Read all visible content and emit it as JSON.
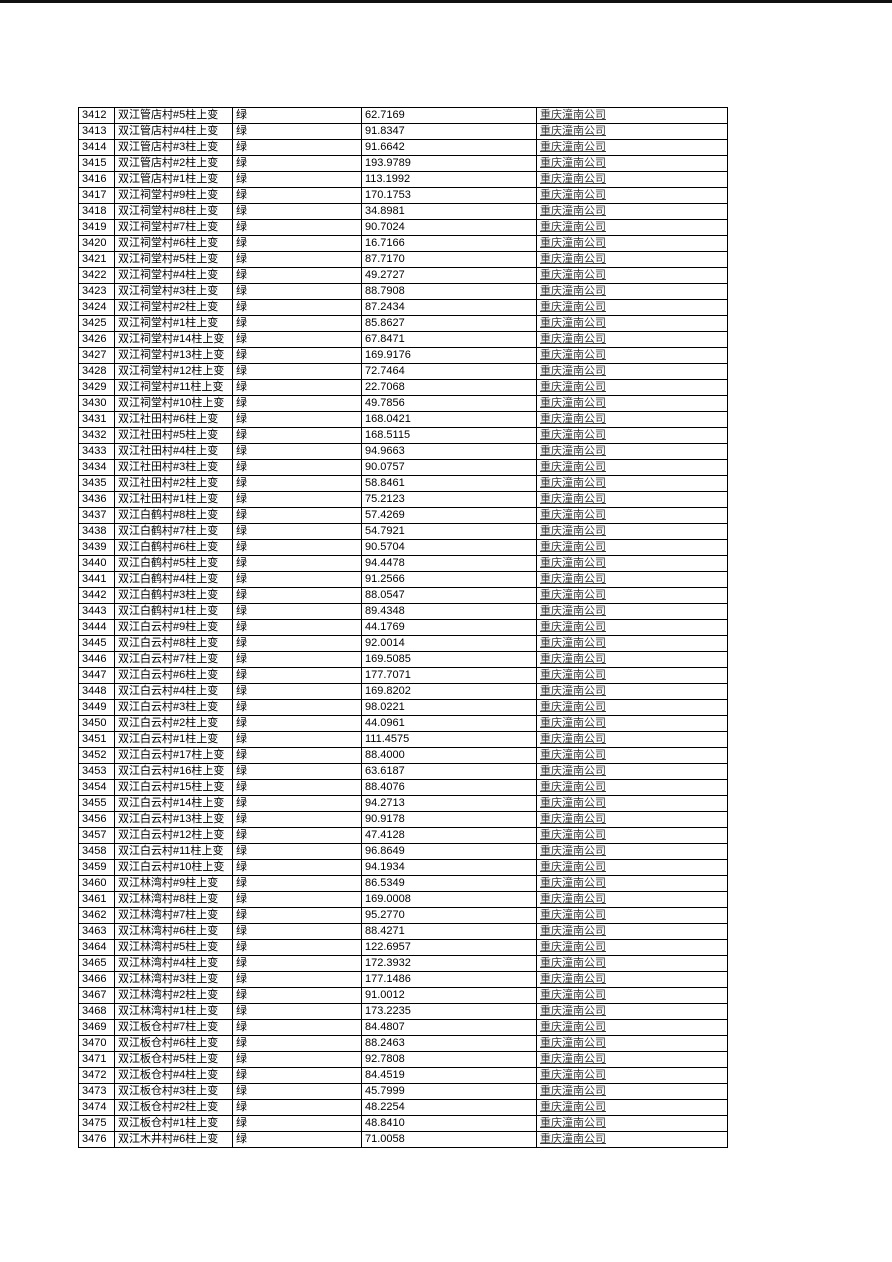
{
  "page": {
    "background": "#ffffff",
    "top_bar_color": "#111111",
    "border_color": "#000000",
    "company_text_color": "#3a3a3a"
  },
  "table": {
    "columns": [
      "id",
      "name",
      "status",
      "value",
      "company"
    ],
    "rows": [
      {
        "id": "3412",
        "name": "双江管店村#5柱上变",
        "status": "绿",
        "value": "62.7169",
        "company": "重庆潼南公司"
      },
      {
        "id": "3413",
        "name": "双江管店村#4柱上变",
        "status": "绿",
        "value": "91.8347",
        "company": "重庆潼南公司"
      },
      {
        "id": "3414",
        "name": "双江管店村#3柱上变",
        "status": "绿",
        "value": "91.6642",
        "company": "重庆潼南公司"
      },
      {
        "id": "3415",
        "name": "双江管店村#2柱上变",
        "status": "绿",
        "value": "193.9789",
        "company": "重庆潼南公司"
      },
      {
        "id": "3416",
        "name": "双江管店村#1柱上变",
        "status": "绿",
        "value": "113.1992",
        "company": "重庆潼南公司"
      },
      {
        "id": "3417",
        "name": "双江祠堂村#9柱上变",
        "status": "绿",
        "value": "170.1753",
        "company": "重庆潼南公司"
      },
      {
        "id": "3418",
        "name": "双江祠堂村#8柱上变",
        "status": "绿",
        "value": "34.8981",
        "company": "重庆潼南公司"
      },
      {
        "id": "3419",
        "name": "双江祠堂村#7柱上变",
        "status": "绿",
        "value": "90.7024",
        "company": "重庆潼南公司"
      },
      {
        "id": "3420",
        "name": "双江祠堂村#6柱上变",
        "status": "绿",
        "value": "16.7166",
        "company": "重庆潼南公司"
      },
      {
        "id": "3421",
        "name": "双江祠堂村#5柱上变",
        "status": "绿",
        "value": "87.7170",
        "company": "重庆潼南公司"
      },
      {
        "id": "3422",
        "name": "双江祠堂村#4柱上变",
        "status": "绿",
        "value": "49.2727",
        "company": "重庆潼南公司"
      },
      {
        "id": "3423",
        "name": "双江祠堂村#3柱上变",
        "status": "绿",
        "value": "88.7908",
        "company": "重庆潼南公司"
      },
      {
        "id": "3424",
        "name": "双江祠堂村#2柱上变",
        "status": "绿",
        "value": "87.2434",
        "company": "重庆潼南公司"
      },
      {
        "id": "3425",
        "name": "双江祠堂村#1柱上变",
        "status": "绿",
        "value": "85.8627",
        "company": "重庆潼南公司"
      },
      {
        "id": "3426",
        "name": "双江祠堂村#14柱上变",
        "status": "绿",
        "value": "67.8471",
        "company": "重庆潼南公司"
      },
      {
        "id": "3427",
        "name": "双江祠堂村#13柱上变",
        "status": "绿",
        "value": "169.9176",
        "company": "重庆潼南公司"
      },
      {
        "id": "3428",
        "name": "双江祠堂村#12柱上变",
        "status": "绿",
        "value": "72.7464",
        "company": "重庆潼南公司"
      },
      {
        "id": "3429",
        "name": "双江祠堂村#11柱上变",
        "status": "绿",
        "value": "22.7068",
        "company": "重庆潼南公司"
      },
      {
        "id": "3430",
        "name": "双江祠堂村#10柱上变",
        "status": "绿",
        "value": "49.7856",
        "company": "重庆潼南公司"
      },
      {
        "id": "3431",
        "name": "双江社田村#6柱上变",
        "status": "绿",
        "value": "168.0421",
        "company": "重庆潼南公司"
      },
      {
        "id": "3432",
        "name": "双江社田村#5柱上变",
        "status": "绿",
        "value": "168.5115",
        "company": "重庆潼南公司"
      },
      {
        "id": "3433",
        "name": "双江社田村#4柱上变",
        "status": "绿",
        "value": "94.9663",
        "company": "重庆潼南公司"
      },
      {
        "id": "3434",
        "name": "双江社田村#3柱上变",
        "status": "绿",
        "value": "90.0757",
        "company": "重庆潼南公司"
      },
      {
        "id": "3435",
        "name": "双江社田村#2柱上变",
        "status": "绿",
        "value": "58.8461",
        "company": "重庆潼南公司"
      },
      {
        "id": "3436",
        "name": "双江社田村#1柱上变",
        "status": "绿",
        "value": "75.2123",
        "company": "重庆潼南公司"
      },
      {
        "id": "3437",
        "name": "双江白鹤村#8柱上变",
        "status": "绿",
        "value": "57.4269",
        "company": "重庆潼南公司"
      },
      {
        "id": "3438",
        "name": "双江白鹤村#7柱上变",
        "status": "绿",
        "value": "54.7921",
        "company": "重庆潼南公司"
      },
      {
        "id": "3439",
        "name": "双江白鹤村#6柱上变",
        "status": "绿",
        "value": "90.5704",
        "company": "重庆潼南公司"
      },
      {
        "id": "3440",
        "name": "双江白鹤村#5柱上变",
        "status": "绿",
        "value": "94.4478",
        "company": "重庆潼南公司"
      },
      {
        "id": "3441",
        "name": "双江白鹤村#4柱上变",
        "status": "绿",
        "value": "91.2566",
        "company": "重庆潼南公司"
      },
      {
        "id": "3442",
        "name": "双江白鹤村#3柱上变",
        "status": "绿",
        "value": "88.0547",
        "company": "重庆潼南公司"
      },
      {
        "id": "3443",
        "name": "双江白鹤村#1柱上变",
        "status": "绿",
        "value": "89.4348",
        "company": "重庆潼南公司"
      },
      {
        "id": "3444",
        "name": "双江白云村#9柱上变",
        "status": "绿",
        "value": "44.1769",
        "company": "重庆潼南公司"
      },
      {
        "id": "3445",
        "name": "双江白云村#8柱上变",
        "status": "绿",
        "value": "92.0014",
        "company": "重庆潼南公司"
      },
      {
        "id": "3446",
        "name": "双江白云村#7柱上变",
        "status": "绿",
        "value": "169.5085",
        "company": "重庆潼南公司"
      },
      {
        "id": "3447",
        "name": "双江白云村#6柱上变",
        "status": "绿",
        "value": "177.7071",
        "company": "重庆潼南公司"
      },
      {
        "id": "3448",
        "name": "双江白云村#4柱上变",
        "status": "绿",
        "value": "169.8202",
        "company": "重庆潼南公司"
      },
      {
        "id": "3449",
        "name": "双江白云村#3柱上变",
        "status": "绿",
        "value": "98.0221",
        "company": "重庆潼南公司"
      },
      {
        "id": "3450",
        "name": "双江白云村#2柱上变",
        "status": "绿",
        "value": "44.0961",
        "company": "重庆潼南公司"
      },
      {
        "id": "3451",
        "name": "双江白云村#1柱上变",
        "status": "绿",
        "value": "111.4575",
        "company": "重庆潼南公司"
      },
      {
        "id": "3452",
        "name": "双江白云村#17柱上变",
        "status": "绿",
        "value": "88.4000",
        "company": "重庆潼南公司"
      },
      {
        "id": "3453",
        "name": "双江白云村#16柱上变",
        "status": "绿",
        "value": "63.6187",
        "company": "重庆潼南公司"
      },
      {
        "id": "3454",
        "name": "双江白云村#15柱上变",
        "status": "绿",
        "value": "88.4076",
        "company": "重庆潼南公司"
      },
      {
        "id": "3455",
        "name": "双江白云村#14柱上变",
        "status": "绿",
        "value": "94.2713",
        "company": "重庆潼南公司"
      },
      {
        "id": "3456",
        "name": "双江白云村#13柱上变",
        "status": "绿",
        "value": "90.9178",
        "company": "重庆潼南公司"
      },
      {
        "id": "3457",
        "name": "双江白云村#12柱上变",
        "status": "绿",
        "value": "47.4128",
        "company": "重庆潼南公司"
      },
      {
        "id": "3458",
        "name": "双江白云村#11柱上变",
        "status": "绿",
        "value": "96.8649",
        "company": "重庆潼南公司"
      },
      {
        "id": "3459",
        "name": "双江白云村#10柱上变",
        "status": "绿",
        "value": "94.1934",
        "company": "重庆潼南公司"
      },
      {
        "id": "3460",
        "name": "双江林湾村#9柱上变",
        "status": "绿",
        "value": "86.5349",
        "company": "重庆潼南公司"
      },
      {
        "id": "3461",
        "name": "双江林湾村#8柱上变",
        "status": "绿",
        "value": "169.0008",
        "company": "重庆潼南公司"
      },
      {
        "id": "3462",
        "name": "双江林湾村#7柱上变",
        "status": "绿",
        "value": "95.2770",
        "company": "重庆潼南公司"
      },
      {
        "id": "3463",
        "name": "双江林湾村#6柱上变",
        "status": "绿",
        "value": "88.4271",
        "company": "重庆潼南公司"
      },
      {
        "id": "3464",
        "name": "双江林湾村#5柱上变",
        "status": "绿",
        "value": "122.6957",
        "company": "重庆潼南公司"
      },
      {
        "id": "3465",
        "name": "双江林湾村#4柱上变",
        "status": "绿",
        "value": "172.3932",
        "company": "重庆潼南公司"
      },
      {
        "id": "3466",
        "name": "双江林湾村#3柱上变",
        "status": "绿",
        "value": "177.1486",
        "company": "重庆潼南公司"
      },
      {
        "id": "3467",
        "name": "双江林湾村#2柱上变",
        "status": "绿",
        "value": "91.0012",
        "company": "重庆潼南公司"
      },
      {
        "id": "3468",
        "name": "双江林湾村#1柱上变",
        "status": "绿",
        "value": "173.2235",
        "company": "重庆潼南公司"
      },
      {
        "id": "3469",
        "name": "双江板仓村#7柱上变",
        "status": "绿",
        "value": "84.4807",
        "company": "重庆潼南公司"
      },
      {
        "id": "3470",
        "name": "双江板仓村#6柱上变",
        "status": "绿",
        "value": "88.2463",
        "company": "重庆潼南公司"
      },
      {
        "id": "3471",
        "name": "双江板仓村#5柱上变",
        "status": "绿",
        "value": "92.7808",
        "company": "重庆潼南公司"
      },
      {
        "id": "3472",
        "name": "双江板仓村#4柱上变",
        "status": "绿",
        "value": "84.4519",
        "company": "重庆潼南公司"
      },
      {
        "id": "3473",
        "name": "双江板仓村#3柱上变",
        "status": "绿",
        "value": "45.7999",
        "company": "重庆潼南公司"
      },
      {
        "id": "3474",
        "name": "双江板仓村#2柱上变",
        "status": "绿",
        "value": "48.2254",
        "company": "重庆潼南公司"
      },
      {
        "id": "3475",
        "name": "双江板仓村#1柱上变",
        "status": "绿",
        "value": "48.8410",
        "company": "重庆潼南公司"
      },
      {
        "id": "3476",
        "name": "双江木井村#6柱上变",
        "status": "绿",
        "value": "71.0058",
        "company": "重庆潼南公司"
      }
    ]
  }
}
